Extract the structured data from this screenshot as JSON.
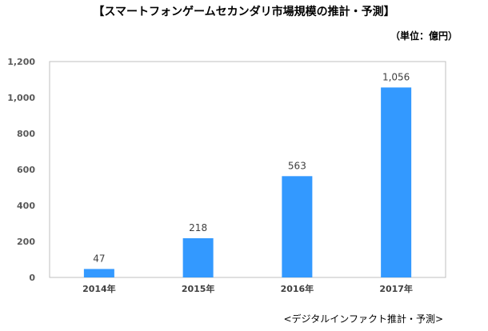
{
  "title": "【スマートフォンゲームセカンダリ市場規模の推計・予測】",
  "unit": "（単位：億円）",
  "source": "<デジタルインファクト推計・予測>",
  "colors": {
    "bar": "#3399ff",
    "frame": "#bfbfbf",
    "text": "#404040"
  },
  "chart_data": {
    "type": "bar",
    "title": "【スマートフォンゲームセカンダリ市場規模の推計・予測】",
    "xlabel": "",
    "ylabel": "",
    "categories": [
      "2014年",
      "2015年",
      "2016年",
      "2017年"
    ],
    "values": [
      47,
      218,
      563,
      1056
    ],
    "value_labels": [
      "47",
      "218",
      "563",
      "1,056"
    ],
    "yticks": [
      0,
      200,
      400,
      600,
      800,
      1000,
      1200
    ],
    "ytick_labels": [
      "0",
      "200",
      "400",
      "600",
      "800",
      "1,000",
      "1,200"
    ],
    "ylim": [
      0,
      1200
    ],
    "grid": false,
    "legend": "none"
  }
}
